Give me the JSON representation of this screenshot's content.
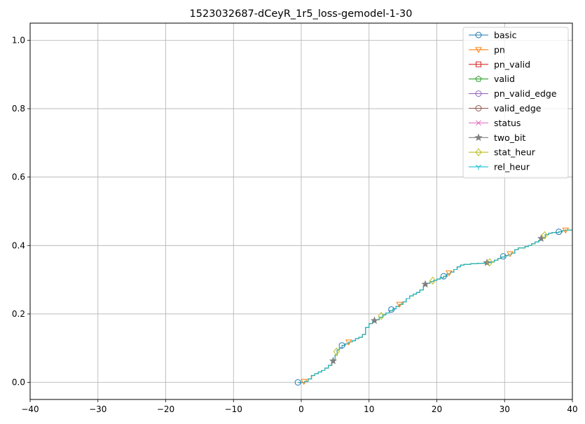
{
  "chart_data": {
    "type": "line",
    "title": "1523032687-dCeyR_1r5_loss-gemodel-1-30",
    "xlabel": "",
    "ylabel": "",
    "xlim": [
      -40,
      40
    ],
    "ylim": [
      -0.05,
      1.05
    ],
    "xticks": [
      -40,
      -30,
      -20,
      -10,
      0,
      10,
      20,
      30,
      40
    ],
    "yticks": [
      0.0,
      0.2,
      0.4,
      0.6,
      0.8,
      1.0
    ],
    "xtick_labels": [
      "−40",
      "−30",
      "−20",
      "−10",
      "0",
      "10",
      "20",
      "30",
      "40"
    ],
    "ytick_labels": [
      "0.0",
      "0.2",
      "0.4",
      "0.6",
      "0.8",
      "1.0"
    ],
    "grid": true,
    "legend_position": "top-right",
    "curve": [
      [
        -0.5,
        0.0
      ],
      [
        0.5,
        0.003
      ],
      [
        1.0,
        0.01
      ],
      [
        1.5,
        0.02
      ],
      [
        2.0,
        0.025
      ],
      [
        2.5,
        0.03
      ],
      [
        3.0,
        0.035
      ],
      [
        3.5,
        0.042
      ],
      [
        4.0,
        0.05
      ],
      [
        4.5,
        0.058
      ],
      [
        4.8,
        0.065
      ],
      [
        5.0,
        0.08
      ],
      [
        5.3,
        0.095
      ],
      [
        5.6,
        0.1
      ],
      [
        6.0,
        0.108
      ],
      [
        6.5,
        0.112
      ],
      [
        7.0,
        0.118
      ],
      [
        7.5,
        0.122
      ],
      [
        8.0,
        0.128
      ],
      [
        8.5,
        0.132
      ],
      [
        9.0,
        0.14
      ],
      [
        9.5,
        0.16
      ],
      [
        10.0,
        0.172
      ],
      [
        10.5,
        0.177
      ],
      [
        11.0,
        0.183
      ],
      [
        11.5,
        0.19
      ],
      [
        12.0,
        0.197
      ],
      [
        12.5,
        0.203
      ],
      [
        13.0,
        0.21
      ],
      [
        13.5,
        0.215
      ],
      [
        14.0,
        0.222
      ],
      [
        14.5,
        0.228
      ],
      [
        15.0,
        0.235
      ],
      [
        15.5,
        0.245
      ],
      [
        16.0,
        0.253
      ],
      [
        16.5,
        0.258
      ],
      [
        17.0,
        0.263
      ],
      [
        17.5,
        0.27
      ],
      [
        18.0,
        0.282
      ],
      [
        18.5,
        0.29
      ],
      [
        19.0,
        0.295
      ],
      [
        19.5,
        0.298
      ],
      [
        20.0,
        0.302
      ],
      [
        20.5,
        0.306
      ],
      [
        21.0,
        0.31
      ],
      [
        21.5,
        0.317
      ],
      [
        22.0,
        0.322
      ],
      [
        22.5,
        0.33
      ],
      [
        23.0,
        0.338
      ],
      [
        23.5,
        0.343
      ],
      [
        24.0,
        0.345
      ],
      [
        25.0,
        0.347
      ],
      [
        26.0,
        0.348
      ],
      [
        27.0,
        0.349
      ],
      [
        27.5,
        0.35
      ],
      [
        28.0,
        0.352
      ],
      [
        28.5,
        0.357
      ],
      [
        29.0,
        0.362
      ],
      [
        29.5,
        0.366
      ],
      [
        30.0,
        0.37
      ],
      [
        30.5,
        0.373
      ],
      [
        31.0,
        0.378
      ],
      [
        31.5,
        0.388
      ],
      [
        32.0,
        0.393
      ],
      [
        33.0,
        0.397
      ],
      [
        33.5,
        0.4
      ],
      [
        34.0,
        0.405
      ],
      [
        34.5,
        0.41
      ],
      [
        35.0,
        0.415
      ],
      [
        35.5,
        0.422
      ],
      [
        36.0,
        0.432
      ],
      [
        36.5,
        0.436
      ],
      [
        37.0,
        0.438
      ],
      [
        38.0,
        0.44
      ],
      [
        38.5,
        0.443
      ],
      [
        39.0,
        0.445
      ],
      [
        40.0,
        0.447
      ]
    ],
    "series": [
      {
        "name": "basic",
        "color": "#1f77b4",
        "marker": "circle",
        "markers_x": [
          -0.5,
          6.0,
          13.3,
          21.0,
          29.8,
          38.0
        ]
      },
      {
        "name": "pn",
        "color": "#ff7f0e",
        "marker": "triangle-down",
        "markers_x": [
          0.4,
          7.0,
          14.5,
          21.8,
          30.8,
          39.0
        ]
      },
      {
        "name": "pn_valid",
        "color": "#d62728",
        "marker": "square",
        "markers_x": []
      },
      {
        "name": "valid",
        "color": "#2ca02c",
        "marker": "pentagon",
        "markers_x": []
      },
      {
        "name": "pn_valid_edge",
        "color": "#9467bd",
        "marker": "circle",
        "markers_x": []
      },
      {
        "name": "valid_edge",
        "color": "#8c564b",
        "marker": "circle",
        "markers_x": []
      },
      {
        "name": "status",
        "color": "#e377c2",
        "marker": "x",
        "markers_x": []
      },
      {
        "name": "two_bit",
        "color": "#7f7f7f",
        "marker": "star",
        "markers_x": [
          4.7,
          10.8,
          18.3,
          27.4,
          35.4
        ]
      },
      {
        "name": "stat_heur",
        "color": "#bcbd22",
        "marker": "diamond",
        "markers_x": [
          5.2,
          11.8,
          19.4,
          27.8,
          35.9
        ]
      },
      {
        "name": "rel_heur",
        "color": "#17becf",
        "marker": "tri-down",
        "markers_x": []
      }
    ]
  }
}
